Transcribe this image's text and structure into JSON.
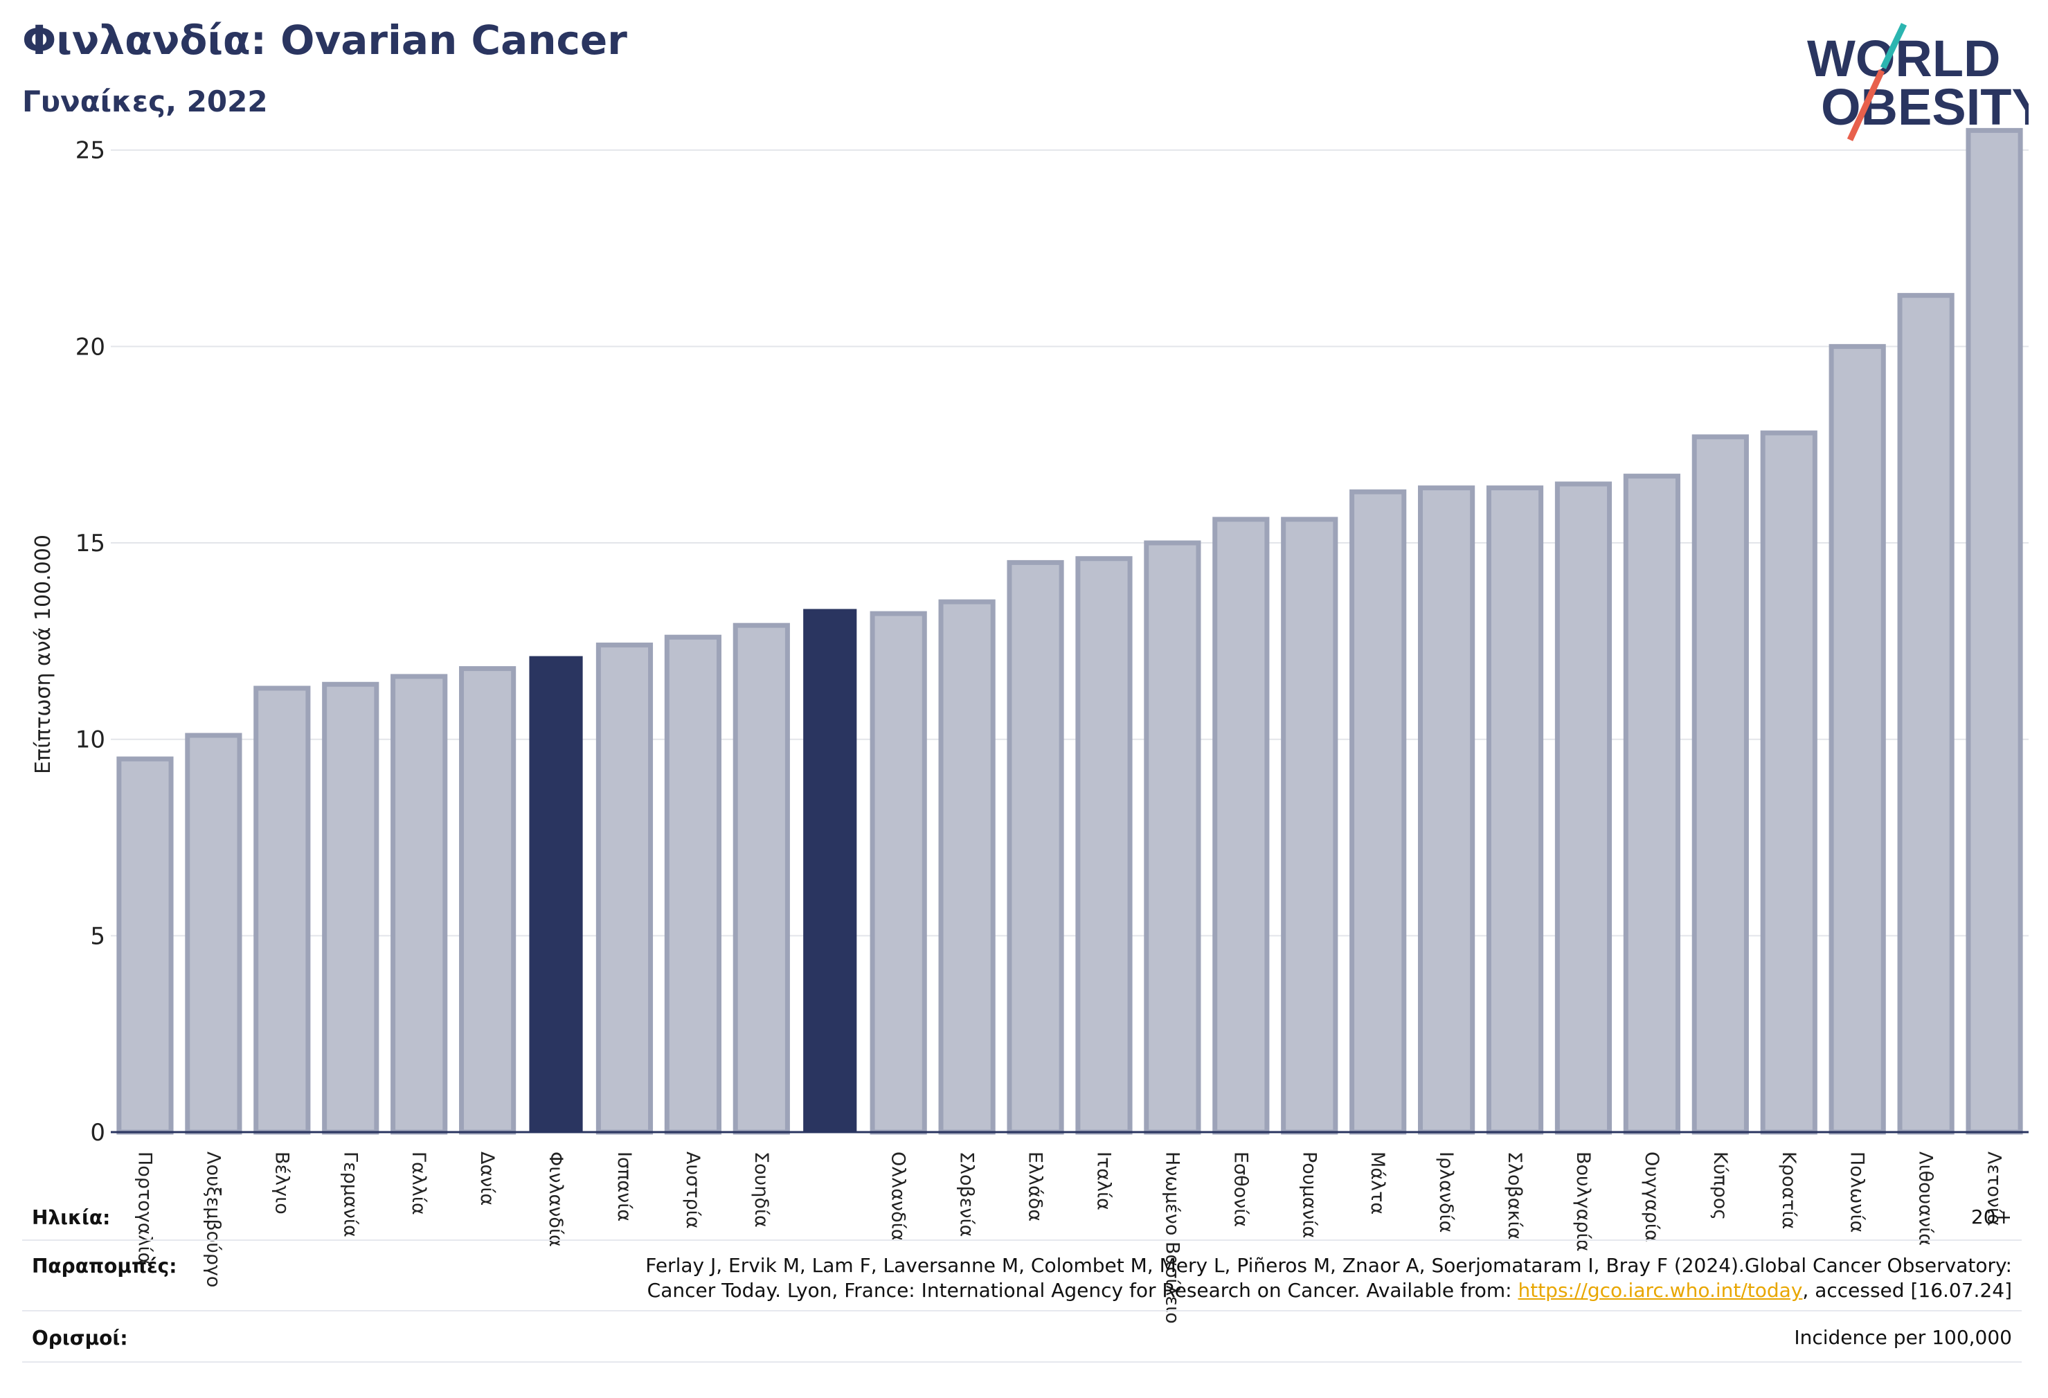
{
  "header": {
    "title": "Φινλανδία: Ovarian Cancer",
    "subtitle": "Γυναίκες, 2022",
    "logo_line1": "WORLD",
    "logo_line2": "OBESITY"
  },
  "colors": {
    "highlight": "#2a3560",
    "bar_fill": "#bcc0ce",
    "bar_stroke": "#9da3b8",
    "grid": "#e3e5ea",
    "logo_teal": "#2bb5b0",
    "logo_red": "#e8604c"
  },
  "chart_data": {
    "type": "bar",
    "title": "Φινλανδία: Ovarian Cancer",
    "ylabel": "Επίπτωση ανά 100.000",
    "ylim": [
      0,
      26
    ],
    "yticks": [
      0,
      5,
      10,
      15,
      20,
      25
    ],
    "grid": true,
    "categories": [
      "Πορτογαλία",
      "Λουξεμβούργο",
      "Βέλγιο",
      "Γερμανία",
      "Γαλλία",
      "Δανία",
      "Φινλανδία",
      "Ισπανία",
      "Αυστρία",
      "Σουηδία",
      "",
      "Ολλανδία",
      "Σλοβενία",
      "Ελλάδα",
      "Ιταλία",
      "Ηνωμένο Βασίλειο",
      "Εσθονία",
      "Ρουμανία",
      "Μάλτα",
      "Ιρλανδία",
      "Σλοβακία",
      "Βουλγαρία",
      "Ουγγαρία",
      "Κύπρος",
      "Κροατία",
      "Πολωνία",
      "Λιθουανία",
      "Λετονία"
    ],
    "values": [
      9.5,
      10.1,
      11.3,
      11.4,
      11.6,
      11.8,
      12.1,
      12.4,
      12.6,
      12.9,
      13.3,
      13.2,
      13.5,
      14.5,
      14.6,
      15.0,
      15.6,
      15.6,
      16.3,
      16.4,
      16.4,
      16.5,
      16.7,
      17.7,
      17.8,
      20.0,
      21.3,
      25.5
    ],
    "highlighted": [
      6,
      10
    ]
  },
  "meta": {
    "age_label": "Ηλικία:",
    "age_value": "20+",
    "refs_label": "Παραπομπές:",
    "refs_line1": "Ferlay J, Ervik M, Lam F, Laversanne M, Colombet M, Mery L, Piñeros M, Znaor A, Soerjomataram I, Bray F (2024).Global Cancer Observatory:",
    "refs_line2_pre": "Cancer Today. Lyon, France: International Agency for Research on Cancer. Available from: ",
    "refs_link": "https://gco.iarc.who.int/today",
    "refs_line2_post": ", accessed [16.07.24]",
    "defs_label": "Ορισμοί:",
    "defs_value": "Incidence per 100,000"
  }
}
